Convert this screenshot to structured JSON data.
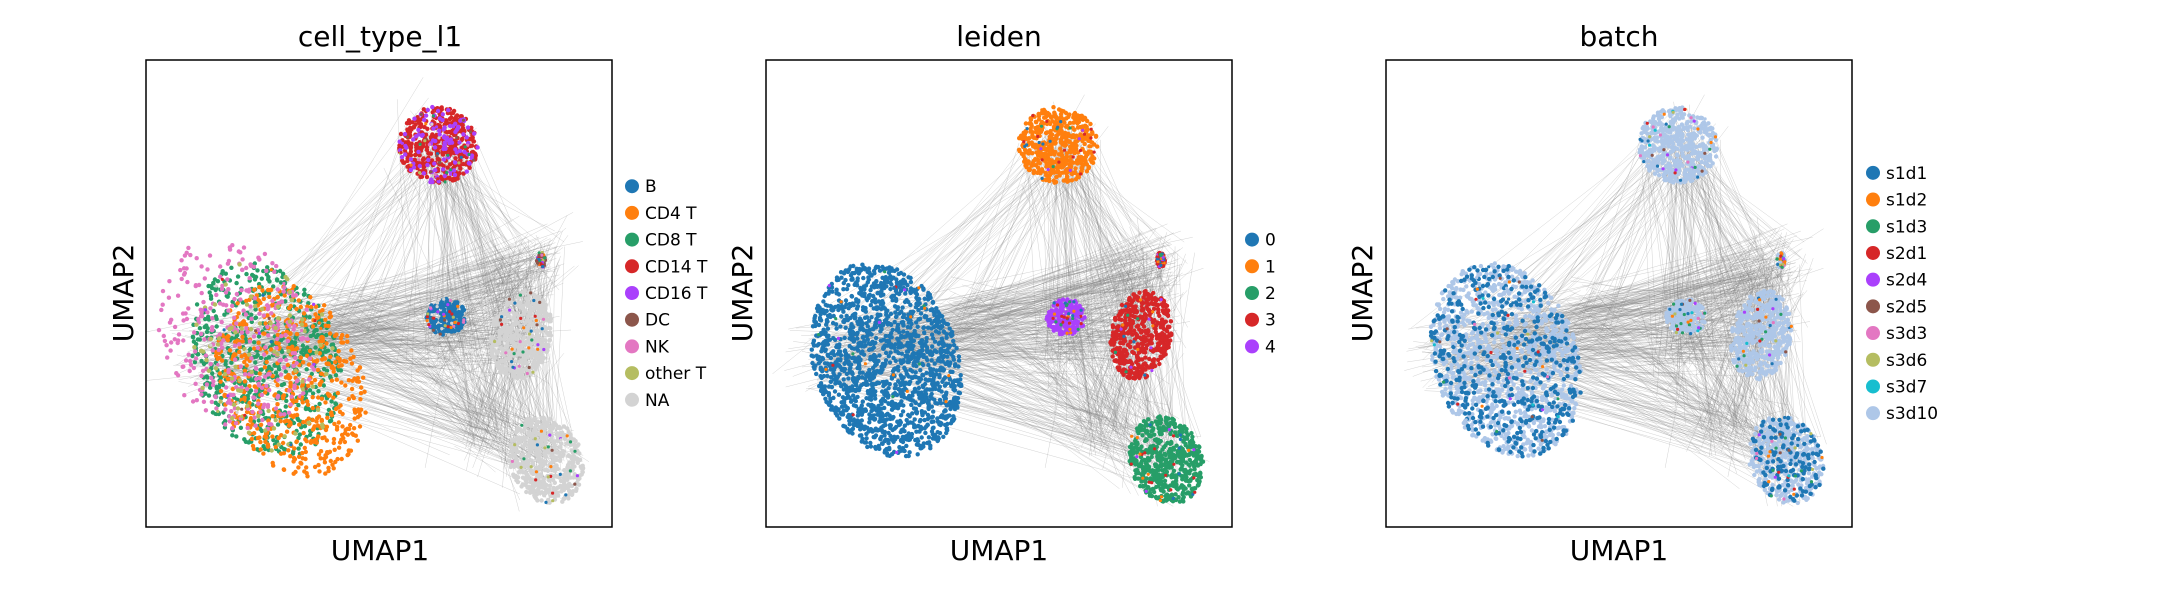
{
  "chart_data": [
    {
      "type": "scatter",
      "title": "cell_type_l1",
      "xlabel": "UMAP1",
      "ylabel": "UMAP2",
      "legend_position": "right",
      "grid": false,
      "legend": [
        {
          "label": "B",
          "color": "#1f77b4"
        },
        {
          "label": "CD4 T",
          "color": "#ff7f0e"
        },
        {
          "label": "CD8 T",
          "color": "#279e68"
        },
        {
          "label": "CD14 T",
          "color": "#d62728"
        },
        {
          "label": "CD16 T",
          "color": "#aa40fc"
        },
        {
          "label": "DC",
          "color": "#8c564b"
        },
        {
          "label": "NK",
          "color": "#e377c2"
        },
        {
          "label": "other T",
          "color": "#b5bd61"
        },
        {
          "label": "NA",
          "color": "#d3d3d3"
        }
      ]
    },
    {
      "type": "scatter",
      "title": "leiden",
      "xlabel": "UMAP1",
      "ylabel": "UMAP2",
      "legend_position": "right",
      "grid": false,
      "legend": [
        {
          "label": "0",
          "color": "#1f77b4"
        },
        {
          "label": "1",
          "color": "#ff7f0e"
        },
        {
          "label": "2",
          "color": "#279e68"
        },
        {
          "label": "3",
          "color": "#d62728"
        },
        {
          "label": "4",
          "color": "#aa40fc"
        }
      ]
    },
    {
      "type": "scatter",
      "title": "batch",
      "xlabel": "UMAP1",
      "ylabel": "UMAP2",
      "legend_position": "right",
      "grid": false,
      "legend": [
        {
          "label": "s1d1",
          "color": "#1f77b4"
        },
        {
          "label": "s1d2",
          "color": "#ff7f0e"
        },
        {
          "label": "s1d3",
          "color": "#279e68"
        },
        {
          "label": "s2d1",
          "color": "#d62728"
        },
        {
          "label": "s2d4",
          "color": "#aa40fc"
        },
        {
          "label": "s2d5",
          "color": "#8c564b"
        },
        {
          "label": "s3d3",
          "color": "#e377c2"
        },
        {
          "label": "s3d6",
          "color": "#b5bd61"
        },
        {
          "label": "s3d7",
          "color": "#17becf"
        },
        {
          "label": "s3d10",
          "color": "#aec7e8"
        }
      ]
    }
  ],
  "colors": {
    "edges": "#808080",
    "frame": "#000000"
  }
}
